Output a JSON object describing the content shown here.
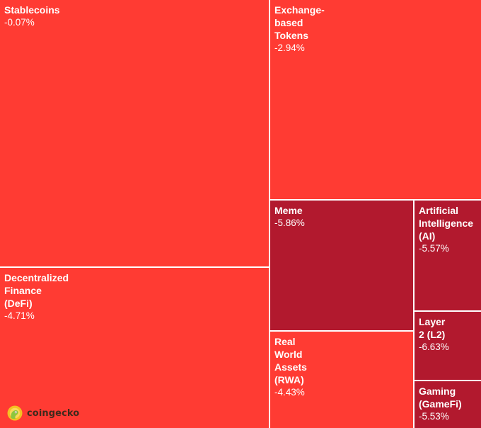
{
  "chart_data": {
    "type": "treemap",
    "color_scale": {
      "mild_decline": "#ff3b33",
      "strong_decline": "#b2192e"
    },
    "tiles": [
      {
        "name": "Stablecoins",
        "label": "Stablecoins",
        "change": "-0.07%",
        "change_value": -0.07
      },
      {
        "name": "Exchange-based Tokens",
        "label": "Exchange-\nbased\nTokens",
        "change": "-2.94%",
        "change_value": -2.94
      },
      {
        "name": "Decentralized Finance (DeFi)",
        "label": "Decentralized\nFinance\n(DeFi)",
        "change": "-4.71%",
        "change_value": -4.71
      },
      {
        "name": "Meme",
        "label": "Meme",
        "change": "-5.86%",
        "change_value": -5.86
      },
      {
        "name": "Artificial Intelligence (AI)",
        "label": "Artificial\nIntelligence\n(AI)",
        "change": "-5.57%",
        "change_value": -5.57
      },
      {
        "name": "Layer 2 (L2)",
        "label": "Layer\n2 (L2)",
        "change": "-6.63%",
        "change_value": -6.63
      },
      {
        "name": "Real World Assets (RWA)",
        "label": "Real\nWorld\nAssets\n(RWA)",
        "change": "-4.43%",
        "change_value": -4.43
      },
      {
        "name": "Gaming (GameFi)",
        "label": "Gaming\n(GameFi)",
        "change": "-5.53%",
        "change_value": -5.53
      }
    ]
  },
  "branding": {
    "name": "coingecko",
    "logo_icon": "gecko-logo-icon"
  }
}
